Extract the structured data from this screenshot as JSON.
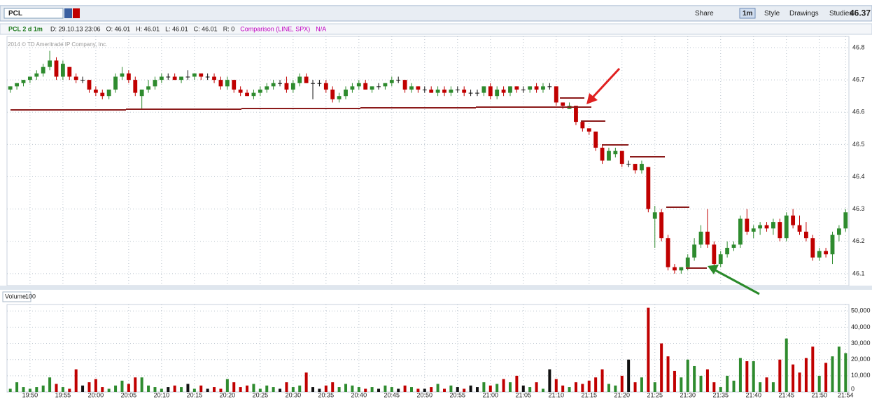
{
  "header": {
    "symbol": "PCL",
    "buttons": [
      "Share",
      "1m",
      "Style",
      "Drawings",
      "Studies"
    ],
    "last": "46.37"
  },
  "info": {
    "study": "PCL 2 d 1m",
    "items": [
      "D: 29.10.13 23:06",
      "O: 46.01",
      "H: 46.01",
      "L: 46.01",
      "C: 46.01",
      "R: 0"
    ],
    "comparison": "Comparison (LINE, SPX)",
    "na": "N/A"
  },
  "copyright": "2014 © TD Ameritrade IP Company, Inc.",
  "volume_pane": {
    "label": "Volume",
    "value": "100"
  },
  "chart_data": {
    "type": "candlestick",
    "grid": true,
    "up_color": "#2e8b2e",
    "down_color": "#c00000",
    "flat_color": "#111111",
    "categories": [
      null,
      null,
      null,
      "19:50",
      null,
      null,
      null,
      null,
      "19:55",
      null,
      null,
      null,
      null,
      "20:00",
      null,
      null,
      null,
      null,
      "20:05",
      null,
      null,
      null,
      null,
      "20:10",
      null,
      null,
      null,
      null,
      "20:15",
      null,
      null,
      null,
      null,
      "20:20",
      null,
      null,
      null,
      null,
      "20:25",
      null,
      null,
      null,
      null,
      "20:30",
      null,
      null,
      null,
      null,
      "20:35",
      null,
      null,
      null,
      null,
      "20:40",
      null,
      null,
      null,
      null,
      "20:45",
      null,
      null,
      null,
      null,
      "20:50",
      null,
      null,
      null,
      null,
      "20:55",
      null,
      null,
      null,
      null,
      "21:00",
      null,
      null,
      null,
      null,
      "21:05",
      null,
      null,
      null,
      null,
      "21:10",
      null,
      null,
      null,
      null,
      "21:15",
      null,
      null,
      null,
      null,
      "21:20",
      null,
      null,
      null,
      null,
      "21:25",
      null,
      null,
      null,
      null,
      "21:30",
      null,
      null,
      null,
      null,
      "21:35",
      null,
      null,
      null,
      null,
      "21:40",
      null,
      null,
      null,
      null,
      "21:45",
      null,
      null,
      null,
      null,
      "21:50",
      null,
      null,
      null,
      "21:54"
    ],
    "open": [
      46.67,
      46.68,
      46.69,
      46.7,
      46.71,
      46.72,
      46.74,
      46.76,
      46.71,
      46.74,
      46.71,
      46.7,
      46.7,
      46.67,
      46.66,
      46.65,
      46.67,
      46.71,
      46.72,
      46.7,
      46.65,
      46.67,
      46.68,
      46.7,
      46.71,
      46.71,
      46.7,
      46.71,
      46.71,
      46.72,
      46.71,
      46.71,
      46.7,
      46.68,
      46.7,
      46.67,
      46.66,
      46.65,
      46.66,
      46.67,
      46.68,
      46.69,
      46.69,
      46.67,
      46.69,
      46.71,
      46.69,
      46.69,
      46.69,
      46.67,
      46.64,
      46.65,
      46.67,
      46.68,
      46.69,
      46.67,
      46.68,
      46.68,
      46.69,
      46.7,
      46.7,
      46.67,
      46.68,
      46.67,
      46.67,
      46.66,
      46.67,
      46.66,
      46.67,
      46.67,
      46.66,
      46.66,
      46.66,
      46.68,
      46.65,
      46.67,
      46.66,
      46.68,
      46.67,
      46.67,
      46.68,
      46.67,
      46.68,
      46.68,
      46.63,
      46.61,
      46.62,
      46.57,
      46.55,
      46.54,
      46.49,
      46.45,
      46.47,
      46.48,
      46.44,
      46.44,
      46.42,
      46.43,
      46.27,
      46.29,
      46.21,
      46.12,
      46.11,
      46.12,
      46.15,
      46.19,
      46.23,
      46.19,
      46.13,
      46.16,
      46.18,
      46.19,
      46.27,
      46.23,
      46.24,
      46.25,
      46.24,
      46.26,
      46.21,
      46.28,
      46.25,
      46.23,
      46.21,
      46.15,
      46.17,
      46.16,
      46.22,
      46.24
    ],
    "high": [
      46.68,
      46.69,
      46.7,
      46.71,
      46.73,
      46.75,
      46.79,
      46.77,
      46.76,
      46.74,
      46.72,
      46.71,
      46.7,
      46.68,
      46.67,
      46.67,
      46.72,
      46.74,
      46.73,
      46.71,
      46.67,
      46.7,
      46.71,
      46.72,
      46.72,
      46.72,
      46.71,
      46.73,
      46.72,
      46.72,
      46.72,
      46.72,
      46.71,
      46.71,
      46.7,
      46.68,
      46.67,
      46.67,
      46.68,
      46.69,
      46.7,
      46.7,
      46.71,
      46.7,
      46.72,
      46.72,
      46.7,
      46.7,
      46.7,
      46.68,
      46.66,
      46.68,
      46.69,
      46.7,
      46.7,
      46.68,
      46.69,
      46.69,
      46.71,
      46.71,
      46.7,
      46.69,
      46.68,
      46.68,
      46.68,
      46.68,
      46.68,
      46.68,
      46.68,
      46.68,
      46.67,
      46.67,
      46.68,
      46.69,
      46.68,
      46.68,
      46.68,
      46.68,
      46.68,
      46.68,
      46.69,
      46.69,
      46.69,
      46.68,
      46.63,
      46.63,
      46.62,
      46.57,
      46.55,
      46.54,
      46.5,
      46.49,
      46.49,
      46.48,
      46.45,
      46.44,
      46.45,
      46.43,
      46.31,
      46.3,
      46.22,
      46.13,
      46.12,
      46.16,
      46.21,
      46.25,
      46.3,
      46.2,
      46.17,
      46.2,
      46.2,
      46.28,
      46.3,
      46.25,
      46.26,
      46.26,
      46.27,
      46.27,
      46.29,
      46.3,
      46.28,
      46.26,
      46.22,
      46.18,
      46.18,
      46.23,
      46.25,
      46.3
    ],
    "low": [
      46.66,
      46.67,
      46.68,
      46.69,
      46.7,
      46.71,
      46.73,
      46.7,
      46.7,
      46.7,
      46.69,
      46.69,
      46.66,
      46.65,
      46.64,
      46.64,
      46.66,
      46.7,
      46.69,
      46.65,
      46.61,
      46.66,
      46.67,
      46.69,
      46.7,
      46.7,
      46.69,
      46.7,
      46.7,
      46.7,
      46.7,
      46.69,
      46.67,
      46.67,
      46.66,
      46.65,
      46.65,
      46.64,
      46.65,
      46.66,
      46.67,
      46.68,
      46.66,
      46.66,
      46.68,
      46.69,
      46.64,
      46.68,
      46.66,
      46.63,
      46.63,
      46.64,
      46.66,
      46.67,
      46.67,
      46.66,
      46.67,
      46.67,
      46.68,
      46.69,
      46.66,
      46.66,
      46.66,
      46.66,
      46.66,
      46.65,
      46.65,
      46.65,
      46.66,
      46.65,
      46.65,
      46.65,
      46.65,
      46.64,
      46.64,
      46.65,
      46.65,
      46.66,
      46.66,
      46.66,
      46.66,
      46.66,
      46.67,
      46.62,
      46.61,
      46.61,
      46.56,
      46.54,
      46.53,
      46.48,
      46.44,
      46.45,
      46.46,
      46.43,
      46.43,
      46.41,
      46.41,
      46.29,
      46.18,
      46.2,
      46.11,
      46.1,
      46.1,
      46.11,
      46.14,
      46.18,
      46.18,
      46.12,
      46.12,
      46.15,
      46.17,
      46.18,
      46.22,
      46.21,
      46.22,
      46.23,
      46.22,
      46.2,
      46.2,
      46.24,
      46.22,
      46.2,
      46.14,
      46.14,
      46.15,
      46.13,
      46.2,
      46.23
    ],
    "close": [
      46.68,
      46.69,
      46.7,
      46.71,
      46.72,
      46.74,
      46.76,
      46.71,
      46.75,
      46.71,
      46.7,
      46.7,
      46.67,
      46.66,
      46.65,
      46.67,
      46.71,
      46.72,
      46.7,
      46.66,
      46.67,
      46.68,
      46.7,
      46.71,
      46.71,
      46.7,
      46.71,
      46.71,
      46.72,
      46.71,
      46.71,
      46.7,
      46.68,
      46.7,
      46.67,
      46.66,
      46.65,
      46.66,
      46.67,
      46.68,
      46.69,
      46.69,
      46.67,
      46.69,
      46.71,
      46.69,
      46.69,
      46.69,
      46.67,
      46.64,
      46.65,
      46.67,
      46.68,
      46.69,
      46.67,
      46.68,
      46.68,
      46.69,
      46.7,
      46.7,
      46.67,
      46.68,
      46.67,
      46.67,
      46.66,
      46.67,
      46.66,
      46.67,
      46.67,
      46.66,
      46.66,
      46.66,
      46.68,
      46.65,
      46.67,
      46.66,
      46.68,
      46.67,
      46.67,
      46.68,
      46.67,
      46.68,
      46.68,
      46.63,
      46.62,
      46.62,
      46.57,
      46.55,
      46.54,
      46.49,
      46.45,
      46.48,
      46.48,
      46.44,
      46.44,
      46.42,
      46.44,
      46.3,
      46.29,
      46.21,
      46.12,
      46.11,
      46.12,
      46.15,
      46.19,
      46.23,
      46.19,
      46.13,
      46.16,
      46.18,
      46.19,
      46.27,
      46.23,
      46.24,
      46.25,
      46.24,
      46.26,
      46.21,
      46.28,
      46.25,
      46.23,
      46.21,
      46.15,
      46.17,
      46.16,
      46.22,
      46.24,
      46.29
    ],
    "volume": [
      2000,
      6000,
      3000,
      2000,
      3000,
      4000,
      9000,
      5000,
      3000,
      2000,
      14000,
      4000,
      6000,
      8000,
      3000,
      2000,
      4000,
      7000,
      5000,
      9000,
      9000,
      4000,
      3000,
      2000,
      3000,
      4000,
      3000,
      5000,
      2000,
      4000,
      2000,
      3000,
      2000,
      8000,
      6000,
      3000,
      4000,
      5000,
      2000,
      4000,
      3000,
      2000,
      6000,
      3000,
      4000,
      12000,
      3000,
      2000,
      4000,
      6000,
      3000,
      5000,
      4000,
      3000,
      2000,
      3000,
      2000,
      4000,
      3000,
      2000,
      4000,
      3000,
      2000,
      2000,
      3000,
      5000,
      2000,
      4000,
      3000,
      2000,
      4000,
      3000,
      6000,
      4000,
      5000,
      8000,
      6000,
      10000,
      4000,
      3000,
      6000,
      2000,
      14000,
      8000,
      4000,
      3000,
      6000,
      5000,
      7000,
      9000,
      14000,
      5000,
      4000,
      10000,
      20000,
      6000,
      9000,
      52000,
      6000,
      30000,
      22000,
      13000,
      9000,
      20000,
      16000,
      10000,
      14000,
      6000,
      3000,
      10000,
      7000,
      21000,
      19000,
      19000,
      6000,
      9000,
      6000,
      20000,
      33000,
      17000,
      12000,
      21000,
      28000,
      10000,
      18000,
      22000,
      28000,
      24000
    ],
    "ylim": [
      46.063,
      46.813
    ],
    "yticks": [
      46.1,
      46.2,
      46.3,
      46.4,
      46.5,
      46.6,
      46.7,
      46.8
    ],
    "vlim": [
      0,
      54000
    ],
    "vticks": [
      0,
      {
        "value": 10000,
        "label": "10,000"
      },
      {
        "value": 20000,
        "label": "20,000"
      },
      {
        "value": 30000,
        "label": "30,000"
      },
      {
        "value": 40000,
        "label": "40,000"
      },
      {
        "value": 50000,
        "label": "50,000"
      }
    ]
  }
}
